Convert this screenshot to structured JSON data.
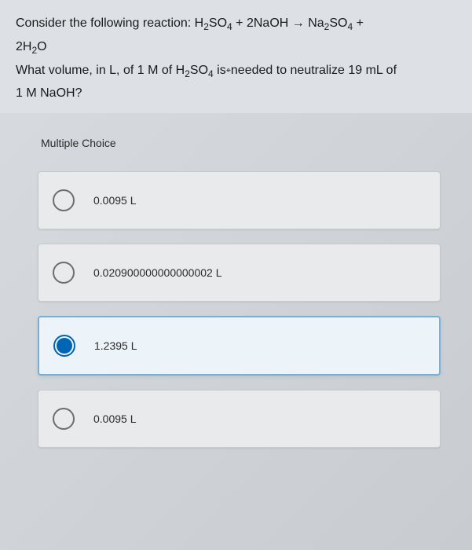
{
  "question": {
    "line1_part1": "Consider the following reaction: H",
    "line1_sub1": "2",
    "line1_part2": "SO",
    "line1_sub2": "4",
    "line1_part3": " + 2NaOH → Na",
    "line1_sub3": "2",
    "line1_part4": "SO",
    "line1_sub4": "4",
    "line1_part5": " +",
    "line2_part1": "2H",
    "line2_sub1": "2",
    "line2_part2": "O",
    "line3_part1": "What volume, in L, of 1 M of H",
    "line3_sub1": "2",
    "line3_part2": "SO",
    "line3_sub2": "4",
    "line3_part3": " is",
    "line3_cursor": "⌖",
    "line3_part4": "needed to neutralize 19 mL of",
    "line4": "1 M NaOH?"
  },
  "mc_header": "Multiple Choice",
  "options": [
    {
      "label": "0.0095 L",
      "selected": false
    },
    {
      "label": "0.020900000000000002 L",
      "selected": false
    },
    {
      "label": "1.2395 L",
      "selected": true
    },
    {
      "label": "0.0095 L",
      "selected": false
    }
  ],
  "colors": {
    "selected_border": "#7baed0",
    "selected_bg": "#edf4f9",
    "radio_fill": "#0066b3",
    "card_bg": "#e8eaec",
    "card_border": "#c5c9cc"
  }
}
